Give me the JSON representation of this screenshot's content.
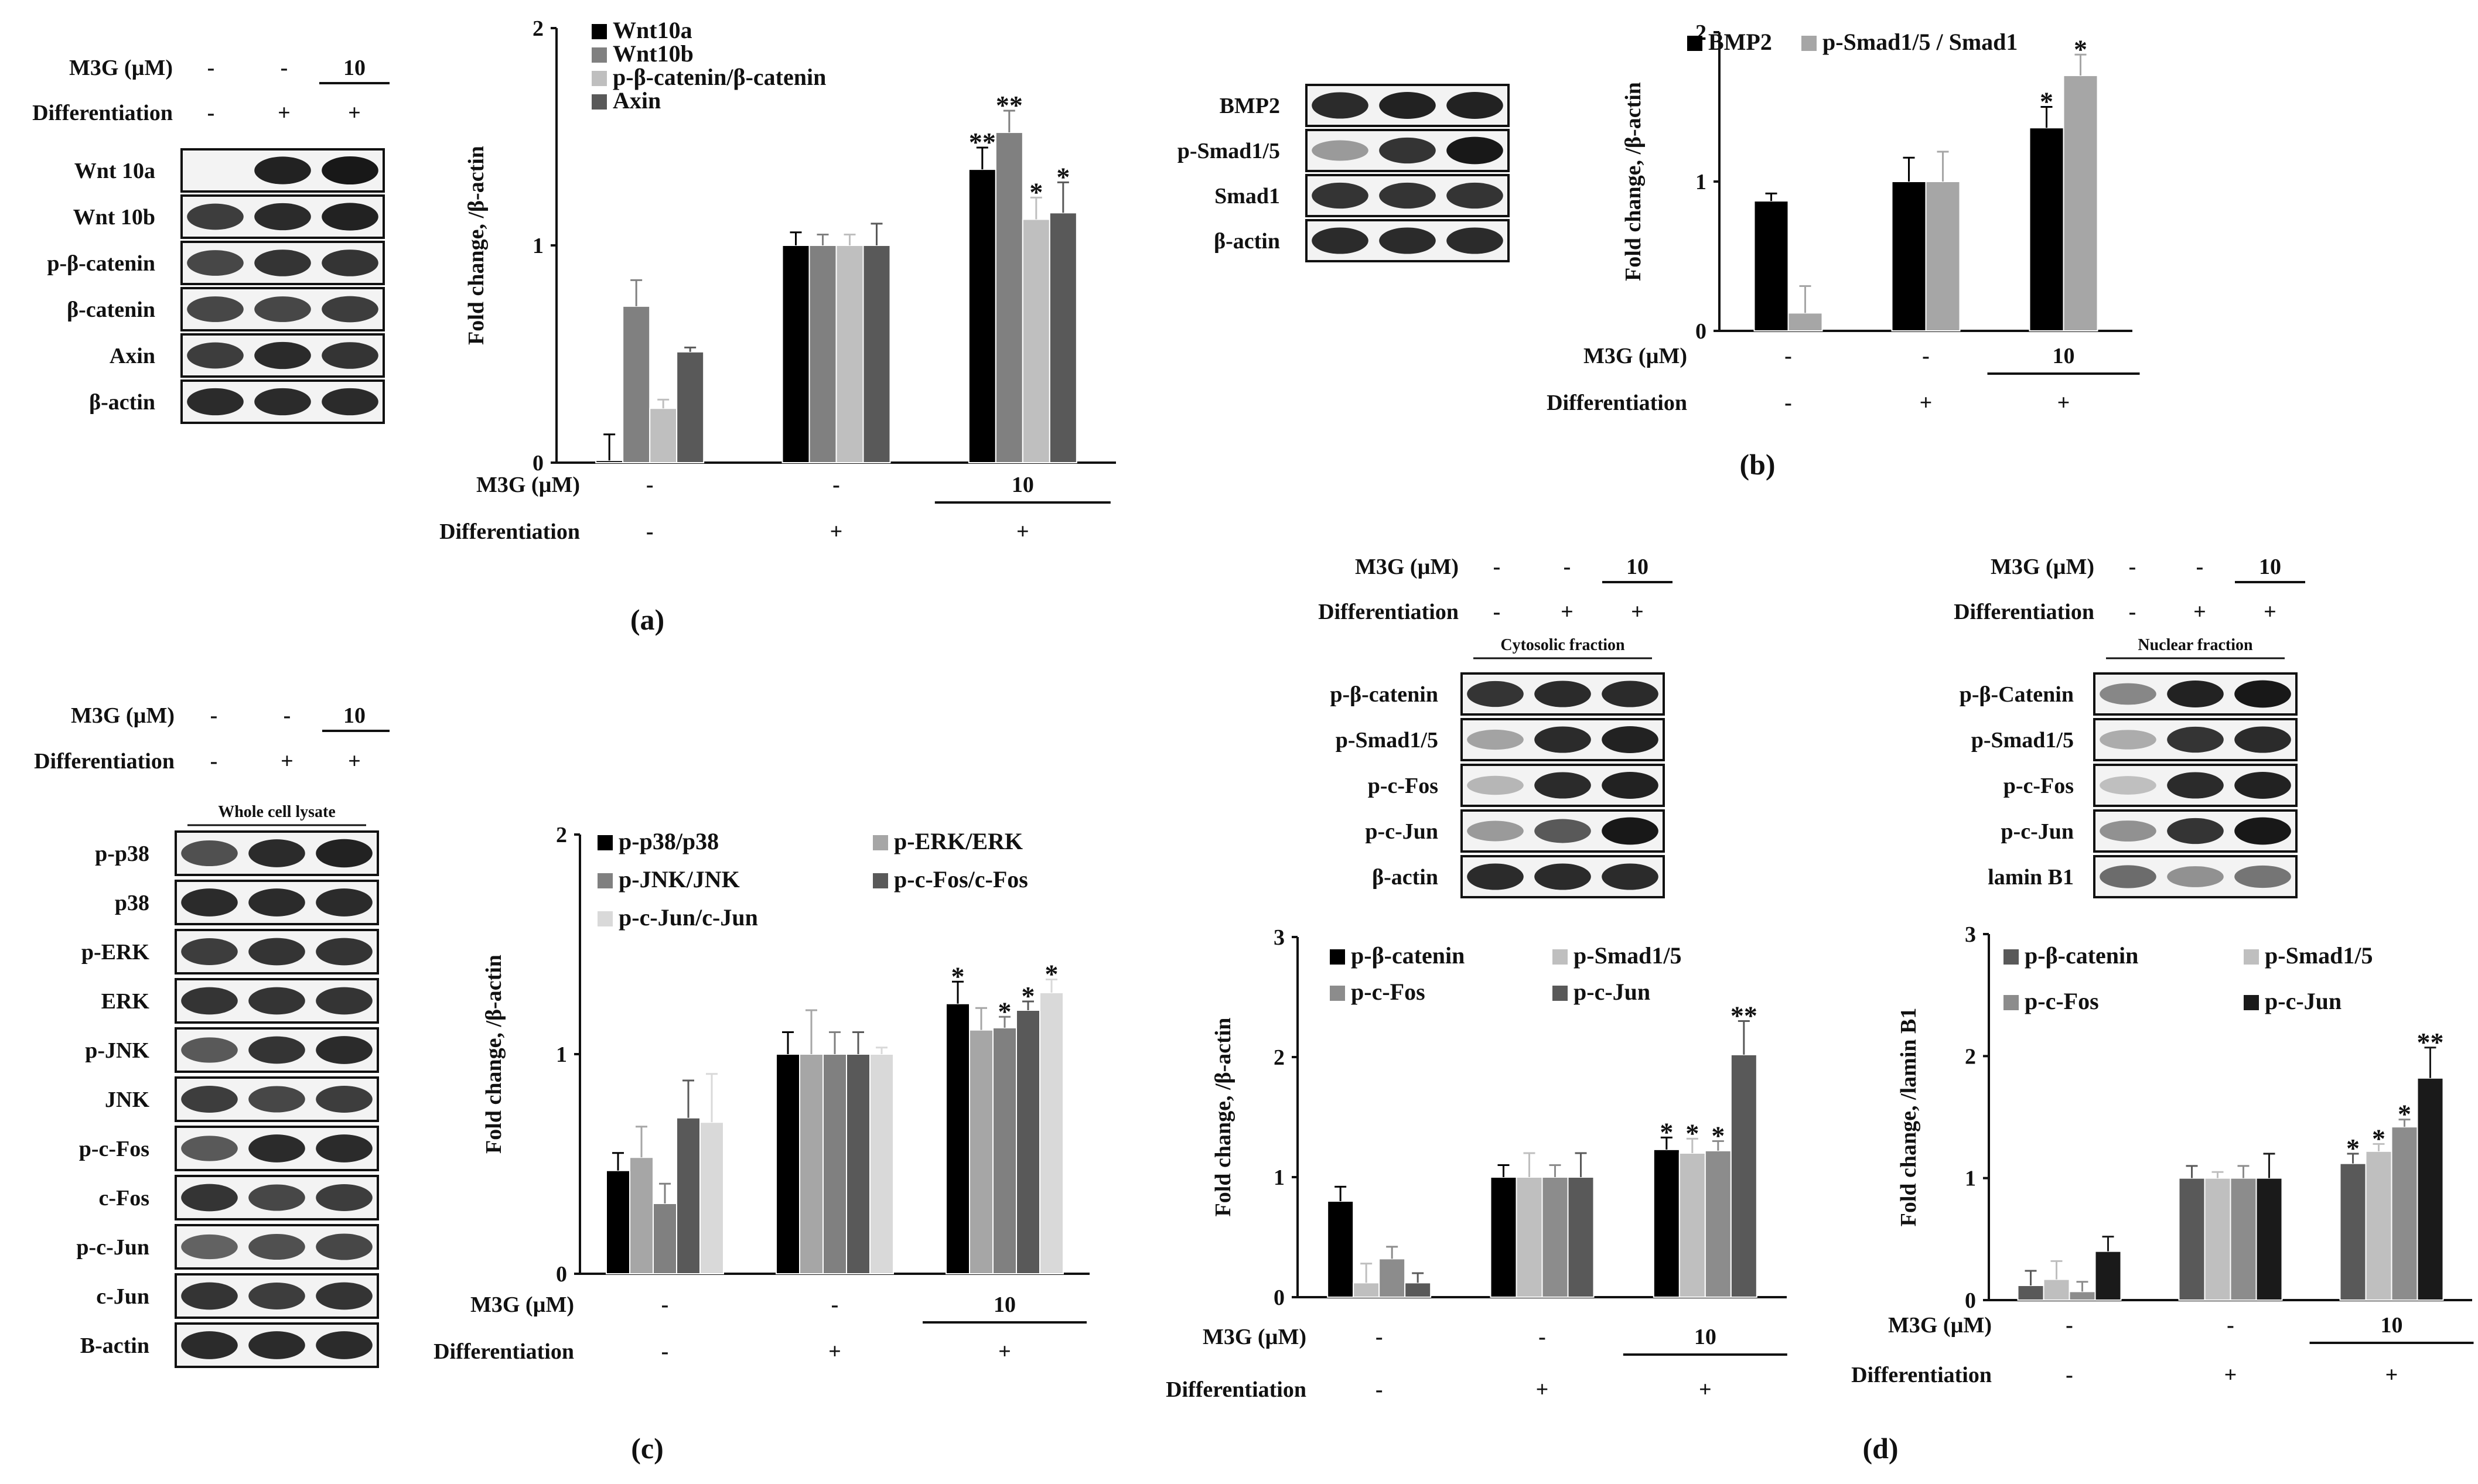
{
  "panel_labels": [
    "(a)",
    "(b)",
    "(c)",
    "(d)"
  ],
  "blot_headers": {
    "m3g_label": "M3G (µM)",
    "diff_label": "Differentiation",
    "m3g_values": [
      "-",
      "-",
      "10"
    ],
    "diff_values": [
      "-",
      "+",
      "+"
    ]
  },
  "blots": {
    "a": {
      "rows": [
        "Wnt 10a",
        "Wnt 10b",
        "p-β-catenin",
        "β-catenin",
        "Axin",
        "β-actin"
      ]
    },
    "b": {
      "rows": [
        "BMP2",
        "p-Smad1/5",
        "Smad1",
        "β-actin"
      ]
    },
    "c": {
      "fraction": "Whole cell lysate",
      "rows": [
        "p-p38",
        "p38",
        "p-ERK",
        "ERK",
        "p-JNK",
        "JNK",
        "p-c-Fos",
        "c-Fos",
        "p-c-Jun",
        "c-Jun",
        "B-actin"
      ]
    },
    "d_cyto": {
      "fraction": "Cytosolic fraction",
      "rows": [
        "p-β-catenin",
        "p-Smad1/5",
        "p-c-Fos",
        "p-c-Jun",
        "β-actin"
      ]
    },
    "d_nuc": {
      "fraction": "Nuclear fraction",
      "rows": [
        "p-β-Catenin",
        "p-Smad1/5",
        "p-c-Fos",
        "p-c-Jun",
        "lamin B1"
      ]
    }
  },
  "chart_data": [
    {
      "id": "a",
      "type": "bar",
      "ylabel": "Fold change, /β-actin",
      "ylim": [
        0,
        2
      ],
      "yticks": [
        "0",
        "1",
        "2"
      ],
      "x_row_labels": [
        "M3G (µM)",
        "Differentiation"
      ],
      "groups": [
        {
          "m3g": "-",
          "diff": "-"
        },
        {
          "m3g": "-",
          "diff": "+"
        },
        {
          "m3g": "10",
          "diff": "+"
        }
      ],
      "series": [
        {
          "name": "Wnt10a",
          "color": "#000000",
          "values": [
            0.01,
            1.0,
            1.35
          ],
          "errors": [
            0.12,
            0.06,
            0.1
          ],
          "sig": [
            "",
            "",
            "**"
          ]
        },
        {
          "name": "Wnt10b",
          "color": "#808080",
          "values": [
            0.72,
            1.0,
            1.52
          ],
          "errors": [
            0.12,
            0.05,
            0.1
          ],
          "sig": [
            "",
            "",
            "**"
          ]
        },
        {
          "name": "p-β-catenin/β-catenin",
          "color": "#bfbfbf",
          "values": [
            0.25,
            1.0,
            1.12
          ],
          "errors": [
            0.04,
            0.05,
            0.1
          ],
          "sig": [
            "",
            "",
            "*"
          ]
        },
        {
          "name": "Axin",
          "color": "#595959",
          "values": [
            0.51,
            1.0,
            1.15
          ],
          "errors": [
            0.02,
            0.1,
            0.14
          ],
          "sig": [
            "",
            "",
            "*"
          ]
        }
      ]
    },
    {
      "id": "b",
      "type": "bar",
      "ylabel": "Fold change, /β-actin",
      "ylim": [
        0,
        2
      ],
      "yticks": [
        "0",
        "1",
        "2"
      ],
      "x_row_labels": [
        "M3G (µM)",
        "Differentiation"
      ],
      "groups": [
        {
          "m3g": "-",
          "diff": "-"
        },
        {
          "m3g": "-",
          "diff": "+"
        },
        {
          "m3g": "10",
          "diff": "+"
        }
      ],
      "series": [
        {
          "name": "BMP2",
          "color": "#000000",
          "values": [
            0.87,
            1.0,
            1.36
          ],
          "errors": [
            0.05,
            0.16,
            0.14
          ],
          "sig": [
            "",
            "",
            "*"
          ]
        },
        {
          "name": "p-Smad1/5 / Smad1",
          "color": "#a6a6a6",
          "values": [
            0.12,
            1.0,
            1.71
          ],
          "errors": [
            0.18,
            0.2,
            0.14
          ],
          "sig": [
            "",
            "",
            "*"
          ]
        }
      ]
    },
    {
      "id": "c",
      "type": "bar",
      "ylabel": "Fold change, /β-actin",
      "ylim": [
        0,
        2
      ],
      "yticks": [
        "0",
        "1",
        "2"
      ],
      "x_row_labels": [
        "M3G (µM)",
        "Differentiation"
      ],
      "groups": [
        {
          "m3g": "-",
          "diff": "-"
        },
        {
          "m3g": "-",
          "diff": "+"
        },
        {
          "m3g": "10",
          "diff": "+"
        }
      ],
      "series": [
        {
          "name": "p-p38/p38",
          "color": "#000000",
          "values": [
            0.47,
            1.0,
            1.23
          ],
          "errors": [
            0.08,
            0.1,
            0.1
          ],
          "sig": [
            "",
            "",
            "*"
          ]
        },
        {
          "name": "p-ERK/ERK",
          "color": "#a6a6a6",
          "values": [
            0.53,
            1.0,
            1.11
          ],
          "errors": [
            0.14,
            0.2,
            0.1
          ],
          "sig": [
            "",
            "",
            ""
          ]
        },
        {
          "name": "p-JNK/JNK",
          "color": "#808080",
          "values": [
            0.32,
            1.0,
            1.12
          ],
          "errors": [
            0.09,
            0.1,
            0.05
          ],
          "sig": [
            "",
            "",
            "*"
          ]
        },
        {
          "name": "p-c-Fos/c-Fos",
          "color": "#595959",
          "values": [
            0.71,
            1.0,
            1.2
          ],
          "errors": [
            0.17,
            0.1,
            0.04
          ],
          "sig": [
            "",
            "",
            "*"
          ]
        },
        {
          "name": "p-c-Jun/c-Jun",
          "color": "#d9d9d9",
          "values": [
            0.69,
            1.0,
            1.28
          ],
          "errors": [
            0.22,
            0.03,
            0.06
          ],
          "sig": [
            "",
            "",
            "*"
          ]
        }
      ]
    },
    {
      "id": "d_cyto",
      "type": "bar",
      "ylabel": "Fold change, /β-actin",
      "ylim": [
        0,
        3
      ],
      "yticks": [
        "0",
        "1",
        "2",
        "3"
      ],
      "x_row_labels": [
        "M3G (µM)",
        "Differentiation"
      ],
      "groups": [
        {
          "m3g": "-",
          "diff": "-"
        },
        {
          "m3g": "-",
          "diff": "+"
        },
        {
          "m3g": "10",
          "diff": "+"
        }
      ],
      "series": [
        {
          "name": "p-β-catenin",
          "color": "#000000",
          "values": [
            0.8,
            1.0,
            1.23
          ],
          "errors": [
            0.12,
            0.1,
            0.1
          ],
          "sig": [
            "",
            "",
            "*"
          ]
        },
        {
          "name": "p-Smad1/5",
          "color": "#bfbfbf",
          "values": [
            0.12,
            1.0,
            1.2
          ],
          "errors": [
            0.16,
            0.2,
            0.12
          ],
          "sig": [
            "",
            "",
            "*"
          ]
        },
        {
          "name": "p-c-Fos",
          "color": "#8c8c8c",
          "values": [
            0.32,
            1.0,
            1.22
          ],
          "errors": [
            0.1,
            0.1,
            0.08
          ],
          "sig": [
            "",
            "",
            "*"
          ]
        },
        {
          "name": "p-c-Jun",
          "color": "#595959",
          "values": [
            0.12,
            1.0,
            2.02
          ],
          "errors": [
            0.08,
            0.2,
            0.28
          ],
          "sig": [
            "",
            "",
            "**"
          ]
        }
      ]
    },
    {
      "id": "d_nuc",
      "type": "bar",
      "ylabel": "Fold change, /lamin B1",
      "ylim": [
        0,
        3
      ],
      "yticks": [
        "0",
        "1",
        "2",
        "3"
      ],
      "x_row_labels": [
        "M3G (µM)",
        "Differentiation"
      ],
      "groups": [
        {
          "m3g": "-",
          "diff": "-"
        },
        {
          "m3g": "-",
          "diff": "+"
        },
        {
          "m3g": "10",
          "diff": "+"
        }
      ],
      "series": [
        {
          "name": "p-β-catenin",
          "color": "#595959",
          "values": [
            0.12,
            1.0,
            1.12
          ],
          "errors": [
            0.12,
            0.1,
            0.08
          ],
          "sig": [
            "",
            "",
            "*"
          ]
        },
        {
          "name": "p-Smad1/5",
          "color": "#bfbfbf",
          "values": [
            0.17,
            1.0,
            1.22
          ],
          "errors": [
            0.15,
            0.05,
            0.06
          ],
          "sig": [
            "",
            "",
            "*"
          ]
        },
        {
          "name": "p-c-Fos",
          "color": "#8c8c8c",
          "values": [
            0.07,
            1.0,
            1.42
          ],
          "errors": [
            0.08,
            0.1,
            0.06
          ],
          "sig": [
            "",
            "",
            "*"
          ]
        },
        {
          "name": "p-c-Jun",
          "color": "#1a1a1a",
          "values": [
            0.4,
            1.0,
            1.82
          ],
          "errors": [
            0.12,
            0.2,
            0.25
          ],
          "sig": [
            "",
            "",
            "**"
          ]
        }
      ]
    }
  ]
}
